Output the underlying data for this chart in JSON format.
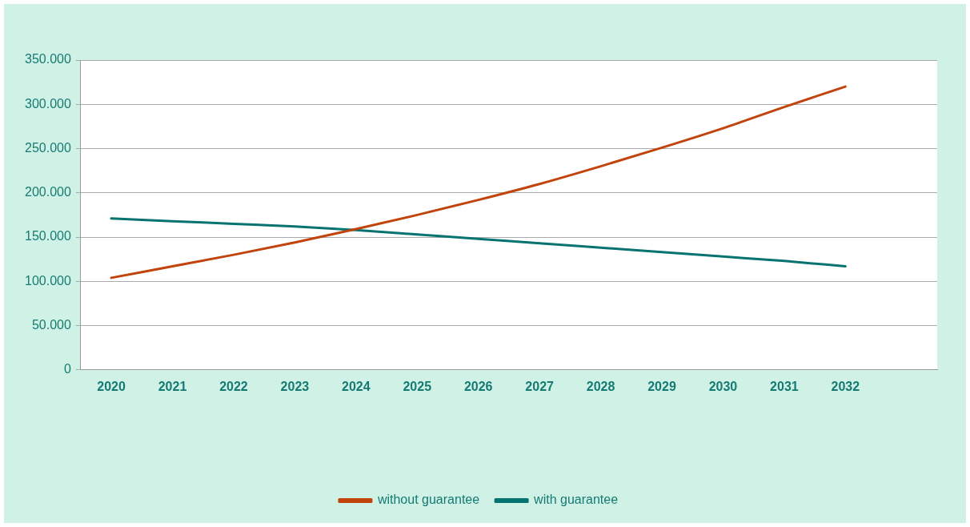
{
  "chart_data": {
    "type": "line",
    "categories": [
      "2020",
      "2021",
      "2022",
      "2023",
      "2024",
      "2025",
      "2026",
      "2027",
      "2028",
      "2029",
      "2030",
      "2031",
      "2032",
      null
    ],
    "series": [
      {
        "name": "without guarantee",
        "color": "#c0440c",
        "values": [
          104000,
          117000,
          130000,
          144000,
          159000,
          175000,
          192000,
          210000,
          230000,
          251000,
          273000,
          297000,
          320000,
          null
        ]
      },
      {
        "name": "with guarantee",
        "color": "#077370",
        "values": [
          171000,
          168000,
          165000,
          162000,
          158000,
          153000,
          148000,
          143000,
          138000,
          133000,
          128000,
          123000,
          117000,
          null
        ]
      }
    ],
    "ylim": [
      0,
      350000
    ],
    "yticks": [
      0,
      {
        "value": 50000,
        "label": "50.000"
      },
      {
        "value": 100000,
        "label": "100.000"
      },
      {
        "value": 150000,
        "label": "150.000"
      },
      {
        "value": 200000,
        "label": "200.000"
      },
      {
        "value": 250000,
        "label": "250.000"
      },
      {
        "value": 300000,
        "label": "300.000"
      },
      {
        "value": 350000,
        "label": "350.000"
      }
    ],
    "grid": "y",
    "legend": "bottom",
    "marker": "none",
    "line_style": "solid"
  }
}
